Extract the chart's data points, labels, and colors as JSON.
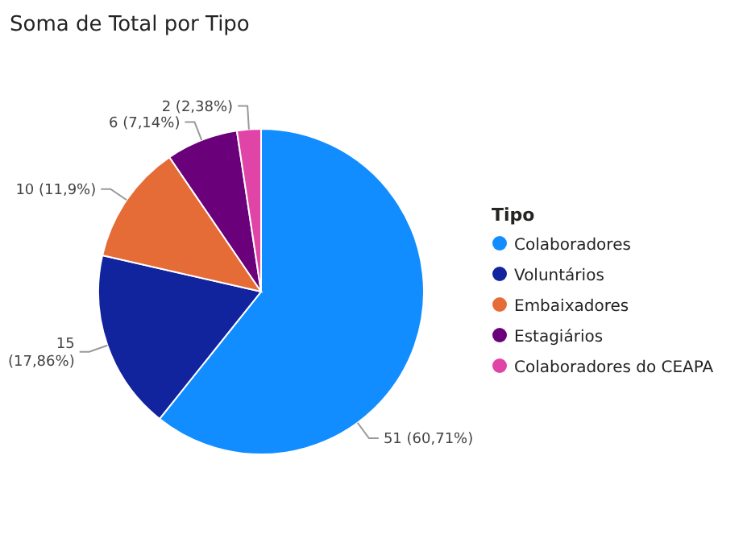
{
  "chart_data": {
    "type": "pie",
    "title": "Soma de Total por Tipo",
    "legend_title": "Tipo",
    "legend": "right",
    "categories": [
      "Colaboradores",
      "Voluntários",
      "Embaixadores",
      "Estagiários",
      "Colaboradores do CEAPA"
    ],
    "values": [
      51,
      15,
      10,
      6,
      2
    ],
    "colors": [
      "#118dff",
      "#12239e",
      "#e66c37",
      "#6b007b",
      "#e044a7"
    ],
    "value_labels": [
      "51 (60,71%)",
      "15 (17,86%)",
      "10 (11,9%)",
      "6 (7,14%)",
      "2 (2,38%)"
    ]
  }
}
